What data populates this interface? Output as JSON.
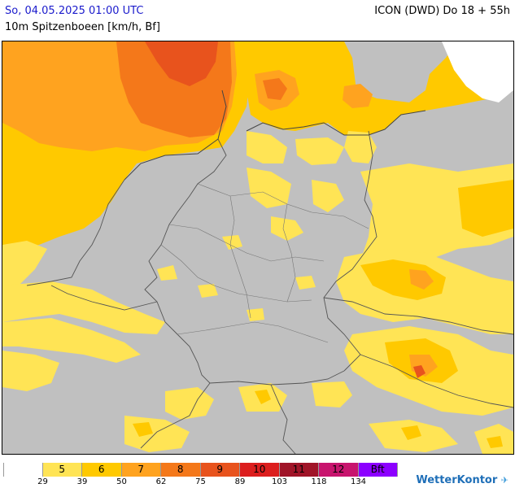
{
  "header": {
    "date": "So, 04.05.2025 01:00 UTC",
    "model": "ICON (DWD) Do 18 + 55h",
    "subtitle": "10m Spitzenboeen [km/h, Bf]"
  },
  "legend": {
    "cells": [
      {
        "label": "",
        "color": "#ffffff"
      },
      {
        "label": "5",
        "color": "#ffe455"
      },
      {
        "label": "6",
        "color": "#ffc900"
      },
      {
        "label": "7",
        "color": "#ffa31f"
      },
      {
        "label": "8",
        "color": "#f4781a"
      },
      {
        "label": "9",
        "color": "#e8531d"
      },
      {
        "label": "10",
        "color": "#dc1e1e"
      },
      {
        "label": "11",
        "color": "#a01428"
      },
      {
        "label": "12",
        "color": "#c8146e"
      },
      {
        "label": "Bft",
        "color": "#8c00ff"
      }
    ],
    "ticks": [
      "29",
      "39",
      "50",
      "62",
      "75",
      "89",
      "103",
      "118",
      "134"
    ]
  },
  "brand": {
    "name": "WetterKontor",
    "mark": "✈"
  },
  "colors": {
    "land": "#c0c0c0",
    "sea_white": "#ffffff",
    "bft5": "#ffe455",
    "bft6": "#ffc900",
    "bft7": "#ffa31f",
    "bft8": "#f4781a",
    "bft9": "#e8531d",
    "border": "#555555"
  }
}
